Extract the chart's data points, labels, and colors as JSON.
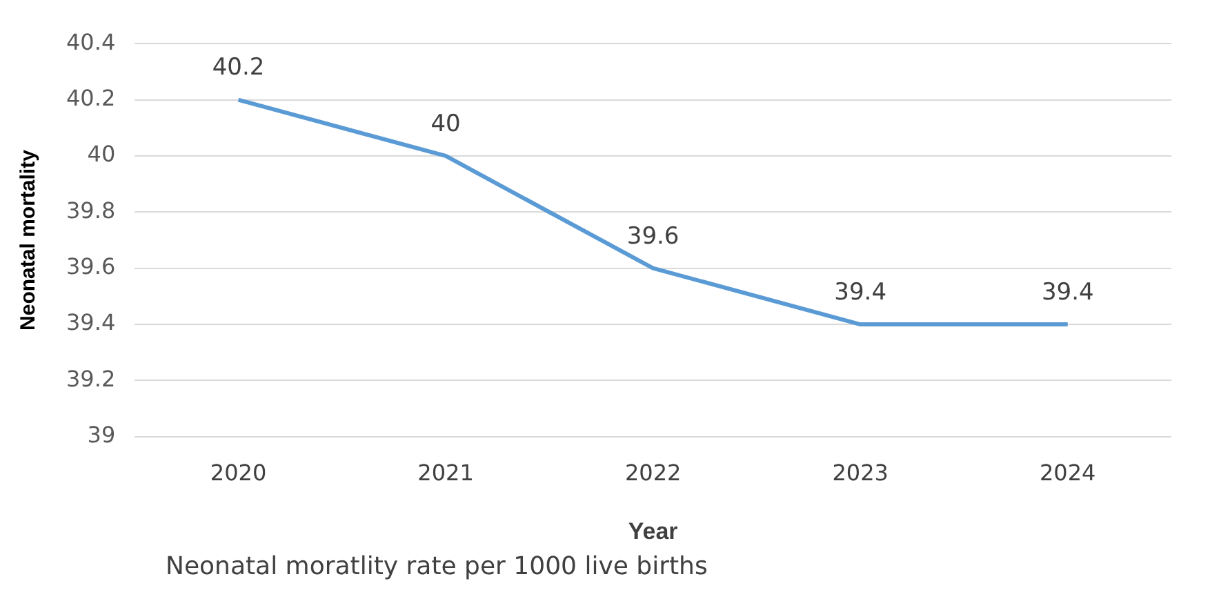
{
  "chart_data": {
    "type": "line",
    "xlabel": "Year",
    "ylabel": "Neonatal mortality",
    "categories": [
      "2020",
      "2021",
      "2022",
      "2023",
      "2024"
    ],
    "series": [
      {
        "color": "#5b9bd5",
        "values": [
          40.2,
          40,
          39.6,
          39.4,
          39.4
        ]
      }
    ],
    "ylim": [
      39,
      40.4
    ],
    "yticks": [
      39,
      39.2,
      39.4,
      39.6,
      39.8,
      40,
      40.2,
      40.4
    ],
    "grid": "y",
    "legend": false,
    "marker": "none",
    "line_style": "solid",
    "data_labels": true,
    "annotations": [
      "Neonatal moratlity rate per 1000 live births"
    ]
  }
}
